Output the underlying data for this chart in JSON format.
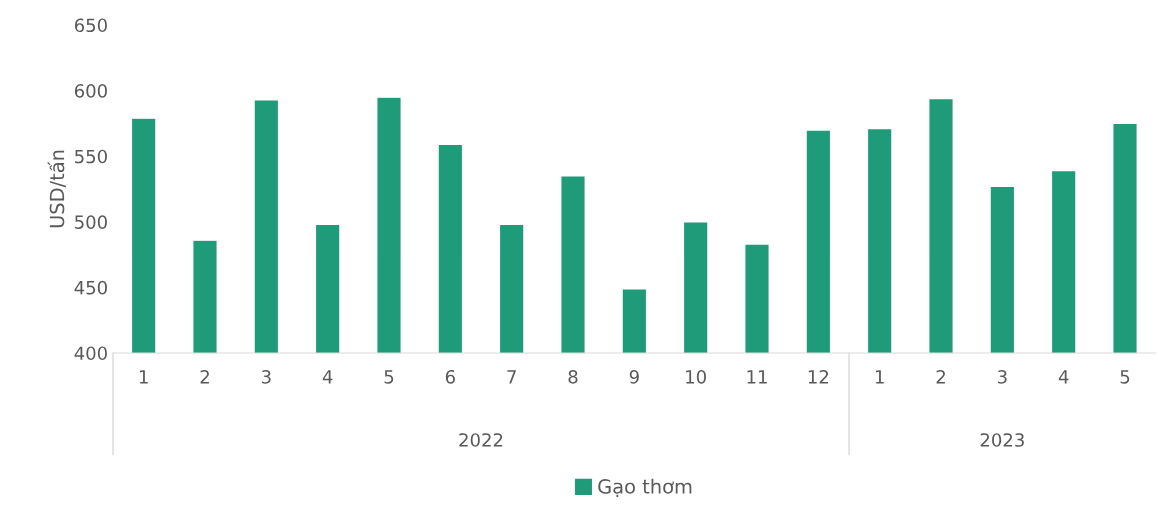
{
  "chart_data": {
    "type": "bar",
    "ylabel": "USD/tấn",
    "categories": [
      "1",
      "2",
      "3",
      "4",
      "5",
      "6",
      "7",
      "8",
      "9",
      "10",
      "11",
      "12",
      "1",
      "2",
      "3",
      "4",
      "5"
    ],
    "series": [
      {
        "name": "Gạo thơm",
        "color": "#1f9b79",
        "values": [
          579,
          486,
          593,
          498,
          595,
          559,
          498,
          535,
          449,
          500,
          483,
          570,
          571,
          594,
          527,
          539,
          575
        ]
      }
    ],
    "ylim": [
      400,
      650
    ],
    "yticks": [
      400,
      450,
      500,
      550,
      600,
      650
    ],
    "grid": false,
    "legend": "bottom",
    "annotations": [
      "2022",
      "2023"
    ]
  }
}
